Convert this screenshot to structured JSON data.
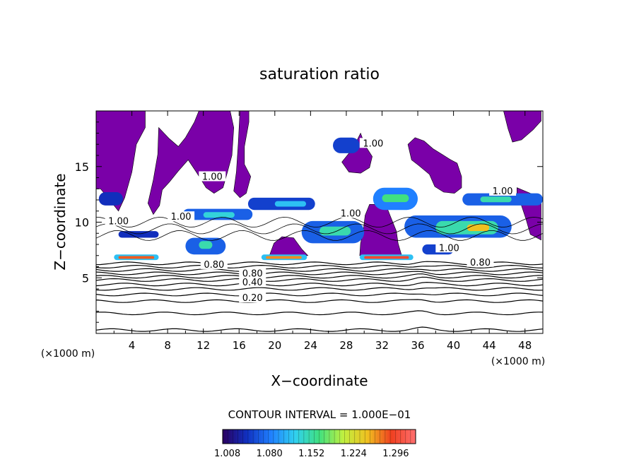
{
  "chart_data": {
    "type": "heatmap",
    "title": "saturation ratio",
    "xlabel": "X−coordinate",
    "ylabel": "Z−coordinate",
    "x_unit": "(×1000 m)",
    "y_unit": "(×1000 m)",
    "xlim": [
      0,
      50
    ],
    "ylim": [
      0,
      20
    ],
    "x_ticks": [
      4,
      8,
      12,
      16,
      20,
      24,
      28,
      32,
      36,
      40,
      44,
      48
    ],
    "y_ticks": [
      5,
      10,
      15
    ],
    "contour_interval_label": "CONTOUR INTERVAL = 1.000E−01",
    "colorbar": {
      "min": 1.0,
      "max": 1.33,
      "tick_labels": [
        "1.008",
        "1.080",
        "1.152",
        "1.224",
        "1.296"
      ],
      "colors": [
        "#2b0060",
        "#1030c0",
        "#2080ff",
        "#30d0f0",
        "#40e080",
        "#c0f040",
        "#f0c020",
        "#f04020",
        "#ff7070"
      ]
    },
    "contour_labels": [
      {
        "text": "0.20",
        "x": 17.5,
        "z": 3.1
      },
      {
        "text": "0.40",
        "x": 17.5,
        "z": 4.5
      },
      {
        "text": "0.80",
        "x": 17.5,
        "z": 5.3
      },
      {
        "text": "0.80",
        "x": 13.2,
        "z": 6.1
      },
      {
        "text": "0.80",
        "x": 43.0,
        "z": 6.3
      },
      {
        "text": "1.00",
        "x": 9.5,
        "z": 10.4
      },
      {
        "text": "1.00",
        "x": 39.5,
        "z": 7.6
      },
      {
        "text": "1.00",
        "x": 45.5,
        "z": 12.7
      },
      {
        "text": "1.00",
        "x": 13.0,
        "z": 14.0
      },
      {
        "text": "1.00",
        "x": 31.0,
        "z": 17.0
      },
      {
        "text": "1.00",
        "x": 2.5,
        "z": 10.0
      },
      {
        "text": "1.00",
        "x": 28.5,
        "z": 10.7
      }
    ],
    "regions_below_1": [
      {
        "name": "subsaturated-region",
        "polygon": [
          [
            0,
            20
          ],
          [
            5.5,
            20
          ],
          [
            5.5,
            18.5
          ],
          [
            4.5,
            17
          ],
          [
            4,
            14.5
          ],
          [
            3.2,
            12.2
          ],
          [
            2.5,
            11
          ],
          [
            1.5,
            12
          ],
          [
            0.5,
            13
          ],
          [
            0,
            13
          ]
        ]
      },
      {
        "name": "subsaturated-region",
        "polygon": [
          [
            7,
            18.5
          ],
          [
            8.2,
            17.5
          ],
          [
            9.2,
            16.8
          ],
          [
            10,
            17.6
          ],
          [
            11,
            19
          ],
          [
            11.5,
            20
          ],
          [
            15,
            20
          ],
          [
            15.4,
            18.5
          ],
          [
            15.2,
            16
          ],
          [
            14.7,
            14.5
          ],
          [
            14.2,
            13.1
          ],
          [
            13.2,
            12.6
          ],
          [
            12.3,
            13.1
          ],
          [
            11.3,
            14.4
          ],
          [
            10.3,
            15.6
          ],
          [
            9.2,
            14.6
          ],
          [
            8.2,
            13.6
          ],
          [
            7.4,
            12.9
          ],
          [
            7.1,
            11.5
          ],
          [
            6.4,
            10.7
          ],
          [
            5.8,
            11.7
          ],
          [
            6.4,
            13.8
          ],
          [
            6.9,
            16.1
          ]
        ]
      },
      {
        "name": "subsaturated-region",
        "polygon": [
          [
            16.1,
            20
          ],
          [
            17.1,
            20
          ],
          [
            17.1,
            19
          ],
          [
            16.6,
            16.8
          ],
          [
            16.6,
            15.2
          ],
          [
            17.3,
            14.1
          ],
          [
            16.8,
            12.6
          ],
          [
            16.1,
            12.2
          ],
          [
            15.4,
            12.8
          ],
          [
            15.7,
            14.5
          ],
          [
            15.9,
            17
          ]
        ]
      },
      {
        "name": "subsaturated-region",
        "polygon": [
          [
            27.5,
            15.4
          ],
          [
            28.3,
            16.2
          ],
          [
            29.1,
            17.2
          ],
          [
            29.6,
            18
          ],
          [
            30.1,
            16.9
          ],
          [
            30.9,
            15.9
          ],
          [
            30.6,
            14.9
          ],
          [
            29.6,
            14.4
          ],
          [
            28.3,
            14.5
          ]
        ]
      },
      {
        "name": "subsaturated-region",
        "polygon": [
          [
            34.9,
            17
          ],
          [
            35.7,
            17.6
          ],
          [
            36.7,
            17.3
          ],
          [
            37.7,
            16.6
          ],
          [
            38.7,
            16.1
          ],
          [
            39.7,
            15.6
          ],
          [
            40.4,
            15.3
          ],
          [
            40.9,
            14.1
          ],
          [
            40.9,
            13.1
          ],
          [
            40.1,
            12.6
          ],
          [
            38.9,
            12.7
          ],
          [
            37.9,
            13.2
          ],
          [
            37.3,
            14.3
          ],
          [
            36.1,
            15.1
          ],
          [
            35.3,
            15.6
          ]
        ]
      },
      {
        "name": "subsaturated-region",
        "polygon": [
          [
            29.5,
            7
          ],
          [
            34.2,
            7
          ],
          [
            33.8,
            8.1
          ],
          [
            33.6,
            9.2
          ],
          [
            33.1,
            10.2
          ],
          [
            32.6,
            11.2
          ],
          [
            31.6,
            11.6
          ],
          [
            30.6,
            11.6
          ],
          [
            30.1,
            10.6
          ],
          [
            29.9,
            9.2
          ],
          [
            29.6,
            8.1
          ]
        ]
      },
      {
        "name": "subsaturated-region",
        "polygon": [
          [
            19.4,
            7
          ],
          [
            23.7,
            7
          ],
          [
            23,
            7.6
          ],
          [
            22.1,
            8.6
          ],
          [
            20.8,
            8.7
          ],
          [
            19.9,
            8.1
          ]
        ]
      },
      {
        "name": "subsaturated-region",
        "polygon": [
          [
            45.6,
            20
          ],
          [
            49.8,
            20
          ],
          [
            49.8,
            19.1
          ],
          [
            48.9,
            18.3
          ],
          [
            47.6,
            17.4
          ],
          [
            46.6,
            17.2
          ],
          [
            46.1,
            18.4
          ]
        ]
      },
      {
        "name": "subsaturated-region",
        "polygon": [
          [
            47.1,
            13.1
          ],
          [
            48.6,
            12.6
          ],
          [
            49.8,
            12.3
          ],
          [
            49.8,
            8.4
          ],
          [
            48.6,
            8.9
          ],
          [
            48.1,
            10.3
          ],
          [
            47.6,
            11.5
          ],
          [
            47.1,
            12.3
          ]
        ]
      }
    ],
    "supersaturated_cells": [
      {
        "x0": 2.0,
        "x1": 7.0,
        "z0": 6.6,
        "z1": 7.1,
        "level": 0.35
      },
      {
        "x0": 2.5,
        "x1": 6.5,
        "z0": 6.7,
        "z1": 6.95,
        "level": 0.85
      },
      {
        "x0": 18.5,
        "x1": 23.6,
        "z0": 6.6,
        "z1": 7.1,
        "level": 0.35
      },
      {
        "x0": 19.0,
        "x1": 23.0,
        "z0": 6.7,
        "z1": 6.95,
        "level": 0.8
      },
      {
        "x0": 29.5,
        "x1": 35.5,
        "z0": 6.6,
        "z1": 7.1,
        "level": 0.35
      },
      {
        "x0": 30.0,
        "x1": 35.0,
        "z0": 6.7,
        "z1": 6.95,
        "level": 0.9
      },
      {
        "x0": 10.0,
        "x1": 14.5,
        "z0": 7.1,
        "z1": 8.6,
        "level": 0.2
      },
      {
        "x0": 11.5,
        "x1": 13.0,
        "z0": 7.6,
        "z1": 8.3,
        "level": 0.45
      },
      {
        "x0": 9.7,
        "x1": 17.5,
        "z0": 10.2,
        "z1": 11.2,
        "level": 0.2
      },
      {
        "x0": 12.0,
        "x1": 15.5,
        "z0": 10.4,
        "z1": 10.9,
        "level": 0.4
      },
      {
        "x0": 17.0,
        "x1": 24.5,
        "z0": 11.1,
        "z1": 12.2,
        "level": 0.15
      },
      {
        "x0": 20.0,
        "x1": 23.5,
        "z0": 11.4,
        "z1": 11.9,
        "level": 0.35
      },
      {
        "x0": 23.0,
        "x1": 30.0,
        "z0": 8.1,
        "z1": 10.1,
        "level": 0.2
      },
      {
        "x0": 25.0,
        "x1": 28.5,
        "z0": 8.8,
        "z1": 9.6,
        "level": 0.45
      },
      {
        "x0": 31.0,
        "x1": 36.0,
        "z0": 11.1,
        "z1": 13.1,
        "level": 0.25
      },
      {
        "x0": 32.0,
        "x1": 35.0,
        "z0": 11.8,
        "z1": 12.5,
        "level": 0.5
      },
      {
        "x0": 34.5,
        "x1": 46.5,
        "z0": 8.6,
        "z1": 10.6,
        "level": 0.2
      },
      {
        "x0": 38.0,
        "x1": 45.0,
        "z0": 8.9,
        "z1": 10.1,
        "level": 0.45
      },
      {
        "x0": 41.5,
        "x1": 44.0,
        "z0": 9.2,
        "z1": 9.8,
        "level": 0.75
      },
      {
        "x0": 41.0,
        "x1": 50.0,
        "z0": 11.5,
        "z1": 12.6,
        "level": 0.2
      },
      {
        "x0": 43.0,
        "x1": 46.5,
        "z0": 11.8,
        "z1": 12.3,
        "level": 0.45
      },
      {
        "x0": 26.5,
        "x1": 29.5,
        "z0": 16.2,
        "z1": 17.6,
        "level": 0.15
      },
      {
        "x0": 0.3,
        "x1": 3.0,
        "z0": 11.5,
        "z1": 12.7,
        "level": 0.12
      },
      {
        "x0": 2.5,
        "x1": 7.0,
        "z0": 8.6,
        "z1": 9.2,
        "level": 0.12
      },
      {
        "x0": 36.5,
        "x1": 40.0,
        "z0": 7.1,
        "z1": 8.0,
        "level": 0.15
      }
    ]
  }
}
